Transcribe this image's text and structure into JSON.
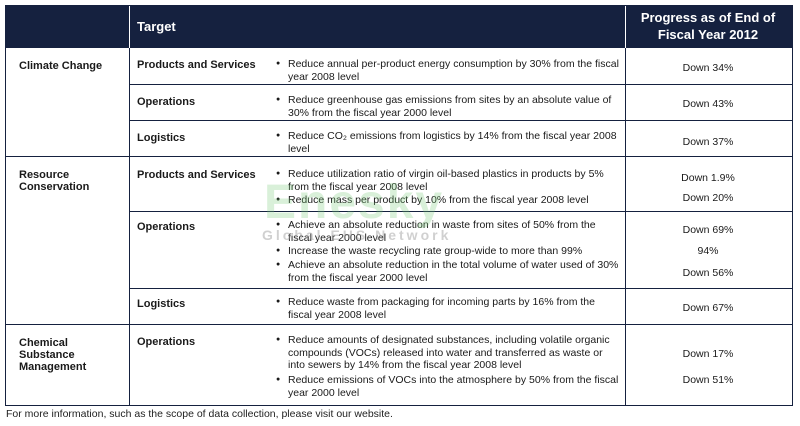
{
  "header": {
    "target": "Target",
    "progress": "Progress as of End of Fiscal Year 2012"
  },
  "categories": [
    {
      "name": "Climate Change",
      "targets": [
        {
          "label": "Products and Services",
          "bullets": [
            "Reduce annual per-product energy consumption by 30% from the fiscal year 2008 level"
          ],
          "values": [
            "Down  34%"
          ]
        },
        {
          "label": "Operations",
          "bullets": [
            "Reduce greenhouse gas emissions from sites by an absolute value of 30% from the fiscal year 2000 level"
          ],
          "values": [
            "Down  43%"
          ]
        },
        {
          "label": "Logistics",
          "bullets": [
            "Reduce CO₂ emissions from logistics by 14% from the fiscal year 2008 level"
          ],
          "values": [
            "Down  37%"
          ]
        }
      ]
    },
    {
      "name": "Resource Conservation",
      "targets": [
        {
          "label": "Products and Services",
          "bullets": [
            "Reduce utilization ratio of virgin oil-based plastics in products by 5% from the fiscal year 2008 level",
            "Reduce mass per product by 10% from the fiscal year 2008 level"
          ],
          "values": [
            "Down  1.9%",
            "Down  20%"
          ]
        },
        {
          "label": "Operations",
          "bullets": [
            "Achieve an absolute reduction in waste from sites of 50% from the fiscal year 2000 level",
            "Increase the waste recycling rate group-wide to more than 99%",
            "Achieve an absolute reduction in the total volume of water used of 30% from the fiscal year 2000 level"
          ],
          "values": [
            "Down  69%",
            "94%",
            "Down  56%"
          ]
        },
        {
          "label": "Logistics",
          "bullets": [
            "Reduce waste from packaging for incoming parts by 16% from the fiscal year 2008 level"
          ],
          "values": [
            "Down  67%"
          ]
        }
      ]
    },
    {
      "name": "Chemical Substance Management",
      "targets": [
        {
          "label": "Operations",
          "bullets": [
            "Reduce amounts of designated substances, including volatile organic compounds (VOCs) released into water and transferred as waste or into sewers by 14% from the fiscal year 2008 level",
            "Reduce emissions of VOCs into the atmosphere by 50% from the fiscal year 2000 level"
          ],
          "values": [
            "Down  17%",
            "Down  51%"
          ]
        }
      ]
    }
  ],
  "watermark": {
    "big": "Enesky",
    "small": "Global EHS Network"
  },
  "footnote": "For more information, such as the scope of data collection, please visit our website.",
  "colors": {
    "header_bg": "#15213f",
    "header_text": "#ffffff",
    "watermark": "#78c878"
  }
}
